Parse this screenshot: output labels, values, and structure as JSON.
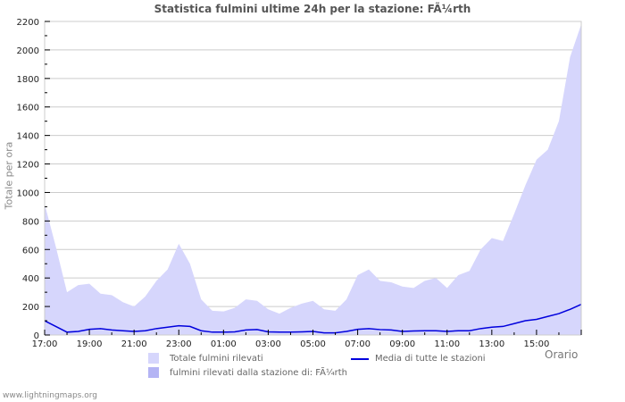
{
  "title": "Statistica fulmini ultime 24h per la stazione: FÃ¼rth",
  "footer": "www.lightningmaps.org",
  "colors": {
    "total_area": "#d6d6fc",
    "station_area": "#b4b4f4",
    "average_line": "#0000dd",
    "grid": "#cccccc"
  },
  "legend": {
    "total": "Totale fulmini rilevati",
    "station": "fulmini rilevati dalla stazione di: FÃ¼rth",
    "average": "Media di tutte le stazioni"
  },
  "chart_data": {
    "type": "area",
    "title": "Statistica fulmini ultime 24h per la stazione: FÃ¼rth",
    "xlabel": "Orario",
    "ylabel": "Totale per ora",
    "ylim": [
      0,
      2200
    ],
    "yticks": [
      0,
      200,
      400,
      600,
      800,
      1000,
      1200,
      1400,
      1600,
      1800,
      2000,
      2200
    ],
    "xticks": [
      "17:00",
      "19:00",
      "21:00",
      "23:00",
      "01:00",
      "03:00",
      "05:00",
      "07:00",
      "09:00",
      "11:00",
      "13:00",
      "15:00"
    ],
    "grid": true,
    "legend_position": "bottom",
    "x": [
      "17:00",
      "17:30",
      "18:00",
      "18:30",
      "19:00",
      "19:30",
      "20:00",
      "20:30",
      "21:00",
      "21:30",
      "22:00",
      "22:30",
      "23:00",
      "23:30",
      "00:00",
      "00:30",
      "01:00",
      "01:30",
      "02:00",
      "02:30",
      "03:00",
      "03:30",
      "04:00",
      "04:30",
      "05:00",
      "05:30",
      "06:00",
      "06:30",
      "07:00",
      "07:30",
      "08:00",
      "08:30",
      "09:00",
      "09:30",
      "10:00",
      "10:30",
      "11:00",
      "11:30",
      "12:00",
      "12:30",
      "13:00",
      "13:30",
      "14:00",
      "14:30",
      "15:00",
      "15:30",
      "16:00",
      "16:30",
      "17:00"
    ],
    "series": [
      {
        "name": "Totale fulmini rilevati",
        "type": "area",
        "values": [
          920,
          620,
          300,
          350,
          360,
          290,
          280,
          230,
          200,
          270,
          380,
          460,
          640,
          500,
          250,
          170,
          165,
          190,
          250,
          240,
          180,
          150,
          190,
          220,
          240,
          180,
          170,
          250,
          420,
          460,
          380,
          370,
          340,
          330,
          380,
          400,
          330,
          420,
          450,
          600,
          680,
          660,
          850,
          1050,
          1230,
          1300,
          1500,
          1950,
          2180
        ]
      },
      {
        "name": "fulmini rilevati dalla stazione di: FÃ¼rth",
        "type": "area",
        "values": [
          0,
          0,
          0,
          0,
          0,
          0,
          0,
          0,
          0,
          0,
          0,
          0,
          0,
          0,
          0,
          0,
          0,
          0,
          0,
          0,
          0,
          0,
          0,
          0,
          0,
          0,
          0,
          0,
          0,
          0,
          0,
          0,
          0,
          0,
          0,
          0,
          0,
          0,
          0,
          0,
          0,
          0,
          0,
          0,
          0,
          0,
          0,
          0,
          0
        ]
      },
      {
        "name": "Media di tutte le stazioni",
        "type": "line",
        "values": [
          100,
          60,
          20,
          25,
          40,
          45,
          35,
          30,
          25,
          30,
          45,
          55,
          65,
          60,
          30,
          20,
          20,
          22,
          35,
          38,
          22,
          20,
          20,
          22,
          25,
          15,
          15,
          25,
          40,
          45,
          38,
          35,
          25,
          28,
          30,
          30,
          25,
          30,
          30,
          45,
          55,
          60,
          80,
          100,
          110,
          130,
          150,
          180,
          215
        ]
      }
    ]
  }
}
